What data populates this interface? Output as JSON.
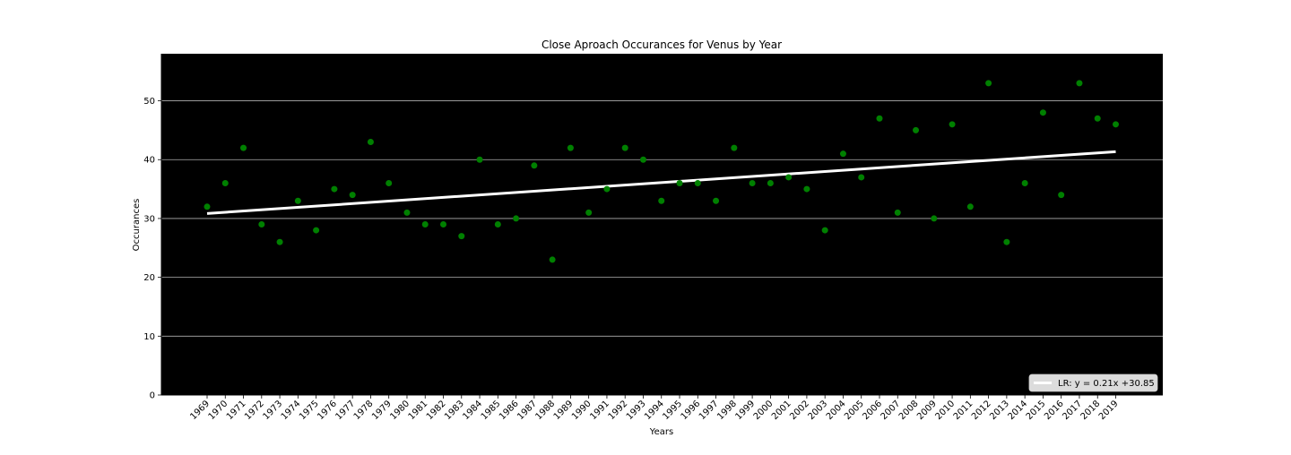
{
  "chart_data": {
    "type": "scatter",
    "title": "Close Aproach Occurances for Venus by Year",
    "xlabel": "Years",
    "ylabel": "Occurances",
    "categories": [
      "1969",
      "1970",
      "1971",
      "1972",
      "1973",
      "1974",
      "1975",
      "1976",
      "1977",
      "1978",
      "1979",
      "1980",
      "1981",
      "1982",
      "1983",
      "1984",
      "1985",
      "1986",
      "1987",
      "1988",
      "1989",
      "1990",
      "1991",
      "1992",
      "1993",
      "1994",
      "1995",
      "1996",
      "1997",
      "1998",
      "1999",
      "2000",
      "2001",
      "2002",
      "2003",
      "2004",
      "2005",
      "2006",
      "2007",
      "2008",
      "2009",
      "2010",
      "2011",
      "2012",
      "2013",
      "2014",
      "2015",
      "2016",
      "2017",
      "2018",
      "2019"
    ],
    "values": [
      32,
      36,
      42,
      29,
      26,
      33,
      28,
      35,
      34,
      43,
      36,
      31,
      29,
      29,
      27,
      40,
      29,
      30,
      39,
      23,
      42,
      31,
      35,
      42,
      40,
      33,
      36,
      36,
      33,
      42,
      36,
      36,
      37,
      35,
      28,
      41,
      37,
      47,
      31,
      45,
      30,
      46,
      32,
      53,
      26,
      36,
      48,
      34,
      53,
      47,
      46
    ],
    "yticks": [
      0,
      10,
      20,
      30,
      40,
      50
    ],
    "ylim": [
      0,
      58
    ],
    "grid": "horizontal",
    "background": "#000000",
    "point_color": "#008000",
    "regression": {
      "label": "LR: y = 0.21x +30.85",
      "slope": 0.21,
      "intercept": 30.85,
      "color": "#ffffff"
    },
    "legend_position": "bottom-right"
  }
}
